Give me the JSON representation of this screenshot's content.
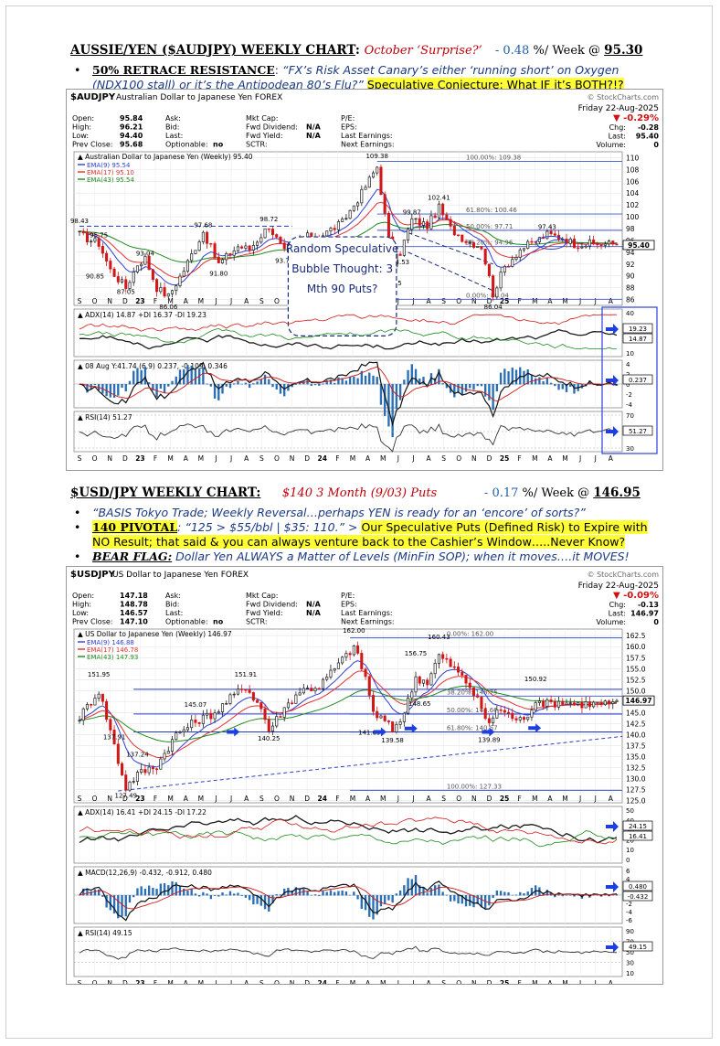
{
  "section1": {
    "title": "AUSSIE/YEN ($AUDJPY) WEEKLY CHART",
    "colon": ":",
    "subtitle": "October ‘Surprise?’",
    "change": "- 0.48",
    "change_suffix": " %/ Week @ ",
    "price": "95.30",
    "bullet_key": "50% RETRACE RESISTANCE",
    "bullet_colon": ": ",
    "bullet_quote": "“FX’s Risk Asset Canary’s either ‘running short’ on Oxygen (NDX100 stall) or it’s the Antipodean 80’s Flu?”",
    "bullet_highlight": "Speculative Conjecture: What IF it’s BOTH?!?"
  },
  "section2": {
    "title": "$USD/JPY WEEKLY CHART:",
    "subtitle": "$140 3 Month (9/03) Puts",
    "change": "- 0.17",
    "change_suffix": " %/ Week @ ",
    "price": "146.95",
    "bullet1": "“BASIS Tokyo Trade; Weekly Reversal…perhaps YEN is ready for an ‘encore’ of sorts?”",
    "bullet2_key": "140 PIVOTAL",
    "bullet2_quote": ": “125 > $55/bbl | $35:  110.”",
    "bullet2_arrow": "  > ",
    "bullet2_highlight": "Our Speculative Puts (Defined Risk) to Expire with NO Result; that said & you can always venture back to the Cashier’s Window…..Never Know?",
    "bullet3_key": "BEAR FLAG:",
    "bullet3_text": " Dollar Yen ALWAYS a Matter of Levels (MinFin SOP); when it moves….it MOVES!"
  },
  "charts": [
    {
      "symbol": "$AUDJPY",
      "name": "Australian Dollar to Japanese Yen FOREX",
      "watermark": "© StockCharts.com",
      "date": "Friday 22-Aug-2025",
      "pct": "▼ -0.29%",
      "stats_left": [
        [
          "Open:",
          "95.84"
        ],
        [
          "High:",
          "96.21"
        ],
        [
          "Low:",
          "94.40"
        ],
        [
          "Prev Close:",
          "95.68"
        ]
      ],
      "stats_mid": [
        [
          "Ask:",
          ""
        ],
        [
          "Bid:",
          ""
        ],
        [
          "Last:",
          ""
        ],
        [
          "Optionable:",
          "no"
        ]
      ],
      "stats_mid2": [
        [
          "Mkt Cap:",
          ""
        ],
        [
          "Fwd Dividend:",
          "N/A"
        ],
        [
          "Fwd Yield:",
          "N/A"
        ],
        [
          "SCTR:",
          ""
        ]
      ],
      "stats_mid3": [
        [
          "P/E:",
          ""
        ],
        [
          "EPS:",
          ""
        ],
        [
          "Last Earnings:",
          ""
        ],
        [
          "Next Earnings:",
          ""
        ]
      ],
      "stats_right": [
        [
          "Chg:",
          "-0.28"
        ],
        [
          "Last:",
          "95.40"
        ],
        [
          "Volume:",
          "0"
        ]
      ],
      "legend_title": "Australian Dollar to Japanese Yen (Weekly) 95.40",
      "legend": [
        {
          "label": "EMA(9) 95.54",
          "color": "#2b3fd9"
        },
        {
          "label": "EMA(17) 95.10",
          "color": "#e03030"
        },
        {
          "label": "EMA(43) 95.54",
          "color": "#1e8a1e"
        }
      ],
      "y_ticks": [
        "110",
        "108",
        "106",
        "104",
        "102",
        "100",
        "98",
        "96",
        "94",
        "92",
        "90",
        "88",
        "86"
      ],
      "y_min": 85,
      "y_max": 111,
      "price_badge": "95.40",
      "price_labels": [
        {
          "t": "98.43",
          "i": 0,
          "v": 98.9
        },
        {
          "t": "95.75",
          "i": 5,
          "v": 96.5
        },
        {
          "t": "90.85",
          "i": 4,
          "v": 89.6
        },
        {
          "t": "87.05",
          "i": 12,
          "v": 86.9
        },
        {
          "t": "93.04",
          "i": 17,
          "v": 93.4
        },
        {
          "t": "86.06",
          "i": 23,
          "v": 84.4
        },
        {
          "t": "97.68",
          "i": 32,
          "v": 98.2
        },
        {
          "t": "91.80",
          "i": 36,
          "v": 90.0
        },
        {
          "t": "98.72",
          "i": 49,
          "v": 99.2
        },
        {
          "t": "93.72",
          "i": 53,
          "v": 92.2
        },
        {
          "t": "109.38",
          "i": 77,
          "v": 109.9
        },
        {
          "t": "99.87",
          "i": 86,
          "v": 100.4
        },
        {
          "t": "102.41",
          "i": 93,
          "v": 102.9
        },
        {
          "t": "93.53",
          "i": 83,
          "v": 92.0
        },
        {
          "t": "90.15",
          "i": 81,
          "v": 88.4
        },
        {
          "t": "86.04",
          "i": 107,
          "v": 84.4
        },
        {
          "t": "97.43",
          "i": 121,
          "v": 97.9
        }
      ],
      "fib_levels": [
        {
          "t": "100.00%: 109.38",
          "v": 109.38
        },
        {
          "t": "61.80%: 100.46",
          "v": 100.46
        },
        {
          "t": "50.00%: 97.71",
          "v": 97.71
        },
        {
          "t": "38.20%: 94.96",
          "v": 94.96
        },
        {
          "t": "0.00%: 86.04",
          "v": 86.04
        }
      ],
      "annotation": "Random Speculative Bubble Thought: 3 Mth 90 Puts?",
      "ind1_title": "ADX(14) 14.87 +DI 16.37 -DI 19.23",
      "ind1_ticks": [
        "40",
        "30",
        "20",
        "10"
      ],
      "ind1_badges": [
        "19.23",
        "14.87"
      ],
      "ind2_title": "08 Aug Y:41.74 (6,9) 0.237, -0.109, 0.346",
      "ind2_ticks": [
        "4",
        "2",
        "0",
        "-2",
        "-4"
      ],
      "ind2_badges": [
        "0.237"
      ],
      "ind3_title": "RSI(14) 51.27",
      "ind3_ticks": [
        "70",
        "50",
        "30"
      ],
      "ind3_badges": [
        "51.27"
      ],
      "x_labels": [
        "S",
        "O",
        "N",
        "D",
        "23",
        "F",
        "M",
        "A",
        "M",
        "J",
        "J",
        "A",
        "S",
        "O",
        "N",
        "D",
        "24",
        "F",
        "M",
        "A",
        "M",
        "J",
        "J",
        "A",
        "S",
        "O",
        "N",
        "D",
        "25",
        "F",
        "M",
        "A",
        "M",
        "J",
        "J",
        "A"
      ],
      "weeks": 140,
      "anchors": [
        [
          0,
          97
        ],
        [
          3,
          96
        ],
        [
          5,
          95.5
        ],
        [
          8,
          91
        ],
        [
          12,
          88
        ],
        [
          15,
          92
        ],
        [
          17,
          93
        ],
        [
          20,
          88
        ],
        [
          23,
          86.5
        ],
        [
          27,
          91
        ],
        [
          32,
          97.5
        ],
        [
          36,
          92
        ],
        [
          41,
          95
        ],
        [
          44,
          94.5
        ],
        [
          49,
          98.5
        ],
        [
          53,
          94
        ],
        [
          58,
          96.5
        ],
        [
          63,
          97
        ],
        [
          68,
          99
        ],
        [
          73,
          104
        ],
        [
          77,
          108.5
        ],
        [
          81,
          92
        ],
        [
          83,
          94
        ],
        [
          86,
          99.5
        ],
        [
          90,
          98.5
        ],
        [
          93,
          101.5
        ],
        [
          96,
          98
        ],
        [
          100,
          96
        ],
        [
          104,
          95
        ],
        [
          107,
          87
        ],
        [
          110,
          91.5
        ],
        [
          114,
          94.5
        ],
        [
          117,
          95.5
        ],
        [
          121,
          97
        ],
        [
          125,
          96.5
        ],
        [
          128,
          95.4
        ],
        [
          139,
          95.4
        ]
      ]
    },
    {
      "symbol": "$USDJPY",
      "name": "US Dollar to Japanese Yen FOREX",
      "watermark": "© StockCharts.com",
      "date": "Friday 22-Aug-2025",
      "pct": "▼ -0.09%",
      "stats_left": [
        [
          "Open:",
          "147.18"
        ],
        [
          "High:",
          "148.78"
        ],
        [
          "Low:",
          "146.57"
        ],
        [
          "Prev Close:",
          "147.10"
        ]
      ],
      "stats_mid": [
        [
          "Ask:",
          ""
        ],
        [
          "Bid:",
          ""
        ],
        [
          "Last:",
          ""
        ],
        [
          "Optionable:",
          "no"
        ]
      ],
      "stats_mid2": [
        [
          "Mkt Cap:",
          ""
        ],
        [
          "Fwd Dividend:",
          "N/A"
        ],
        [
          "Fwd Yield:",
          "N/A"
        ],
        [
          "SCTR:",
          ""
        ]
      ],
      "stats_mid3": [
        [
          "P/E:",
          ""
        ],
        [
          "EPS:",
          ""
        ],
        [
          "Last Earnings:",
          ""
        ],
        [
          "Next Earnings:",
          ""
        ]
      ],
      "stats_right": [
        [
          "Chg:",
          "-0.13"
        ],
        [
          "Last:",
          "146.97"
        ],
        [
          "Volume:",
          "0"
        ]
      ],
      "legend_title": "US Dollar to Japanese Yen (Weekly) 146.97",
      "legend": [
        {
          "label": "EMA(9) 146.88",
          "color": "#2b3fd9"
        },
        {
          "label": "EMA(17) 146.78",
          "color": "#e03030"
        },
        {
          "label": "EMA(43) 147.93",
          "color": "#1e8a1e"
        }
      ],
      "y_ticks": [
        "162.5",
        "160.0",
        "157.5",
        "155.0",
        "152.5",
        "150.0",
        "147.5",
        "145.0",
        "142.5",
        "140.0",
        "137.5",
        "135.0",
        "132.5",
        "130.0",
        "127.5",
        "125.0"
      ],
      "y_min": 124.5,
      "y_max": 164,
      "price_badge": "146.97",
      "price_labels": [
        {
          "t": "151.95",
          "i": 5,
          "v": 153.2
        },
        {
          "t": "137.91",
          "i": 9,
          "v": 139.0
        },
        {
          "t": "137.24",
          "i": 15,
          "v": 135.0
        },
        {
          "t": "127.49",
          "i": 12,
          "v": 125.6
        },
        {
          "t": "145.07",
          "i": 30,
          "v": 146.3
        },
        {
          "t": "151.91",
          "i": 43,
          "v": 153.2
        },
        {
          "t": "140.25",
          "i": 49,
          "v": 138.6
        },
        {
          "t": "162.00",
          "i": 71,
          "v": 163.2
        },
        {
          "t": "141.69",
          "i": 75,
          "v": 140.0
        },
        {
          "t": "139.58",
          "i": 81,
          "v": 138.2
        },
        {
          "t": "156.75",
          "i": 87,
          "v": 158.0
        },
        {
          "t": "148.65",
          "i": 88,
          "v": 146.5
        },
        {
          "t": "160.43",
          "i": 93,
          "v": 161.7
        },
        {
          "t": "139.89",
          "i": 106,
          "v": 138.3
        },
        {
          "t": "150.92",
          "i": 118,
          "v": 152.2
        }
      ],
      "fib_levels": [
        {
          "t": "0.00%: 162.00",
          "v": 162.0
        },
        {
          "t": "38.20%: 148.75",
          "v": 148.75
        },
        {
          "t": "50.00%: 144.66",
          "v": 144.66
        },
        {
          "t": "61.80%: 140.57",
          "v": 140.57
        },
        {
          "t": "100.00%: 127.33",
          "v": 127.33
        }
      ],
      "ind1_title": "ADX(14) 16.41 +DI 24.15 -DI 17.22",
      "ind1_ticks": [
        "50",
        "40",
        "30",
        "20",
        "10",
        "0"
      ],
      "ind1_badges": [
        "24.15",
        "16.41"
      ],
      "ind2_title": "MACD(12,26,9) -0.432, -0.912, 0.480",
      "ind2_ticks": [
        "6",
        "4",
        "2",
        "0",
        "-2",
        "-4",
        "-6"
      ],
      "ind2_badges": [
        "0.480",
        "-0.432"
      ],
      "ind3_title": "RSI(14) 49.15",
      "ind3_ticks": [
        "90",
        "70",
        "50",
        "30",
        "10"
      ],
      "ind3_badges": [
        "49.15"
      ],
      "x_labels": [
        "S",
        "O",
        "N",
        "D",
        "23",
        "F",
        "M",
        "A",
        "M",
        "J",
        "J",
        "A",
        "S",
        "O",
        "N",
        "D",
        "24",
        "F",
        "M",
        "A",
        "M",
        "J",
        "J",
        "A",
        "S",
        "O",
        "N",
        "D",
        "25",
        "F",
        "M",
        "A",
        "M",
        "J",
        "J",
        "A"
      ],
      "weeks": 140,
      "anchors": [
        [
          0,
          144
        ],
        [
          5,
          150
        ],
        [
          8,
          141
        ],
        [
          10,
          134
        ],
        [
          12,
          128
        ],
        [
          15,
          131
        ],
        [
          20,
          133
        ],
        [
          25,
          140
        ],
        [
          30,
          143
        ],
        [
          35,
          145
        ],
        [
          40,
          149
        ],
        [
          43,
          151
        ],
        [
          47,
          146
        ],
        [
          49,
          141
        ],
        [
          53,
          146
        ],
        [
          57,
          150
        ],
        [
          62,
          151
        ],
        [
          67,
          156
        ],
        [
          71,
          160
        ],
        [
          74,
          153
        ],
        [
          76,
          145
        ],
        [
          79,
          143
        ],
        [
          81,
          141
        ],
        [
          84,
          145
        ],
        [
          87,
          153
        ],
        [
          90,
          152
        ],
        [
          93,
          158
        ],
        [
          97,
          155
        ],
        [
          101,
          151
        ],
        [
          104,
          146
        ],
        [
          106,
          142
        ],
        [
          108,
          146
        ],
        [
          112,
          144
        ],
        [
          115,
          143
        ],
        [
          118,
          148
        ],
        [
          121,
          147
        ],
        [
          125,
          147.5
        ],
        [
          129,
          147
        ],
        [
          139,
          147
        ]
      ]
    }
  ]
}
